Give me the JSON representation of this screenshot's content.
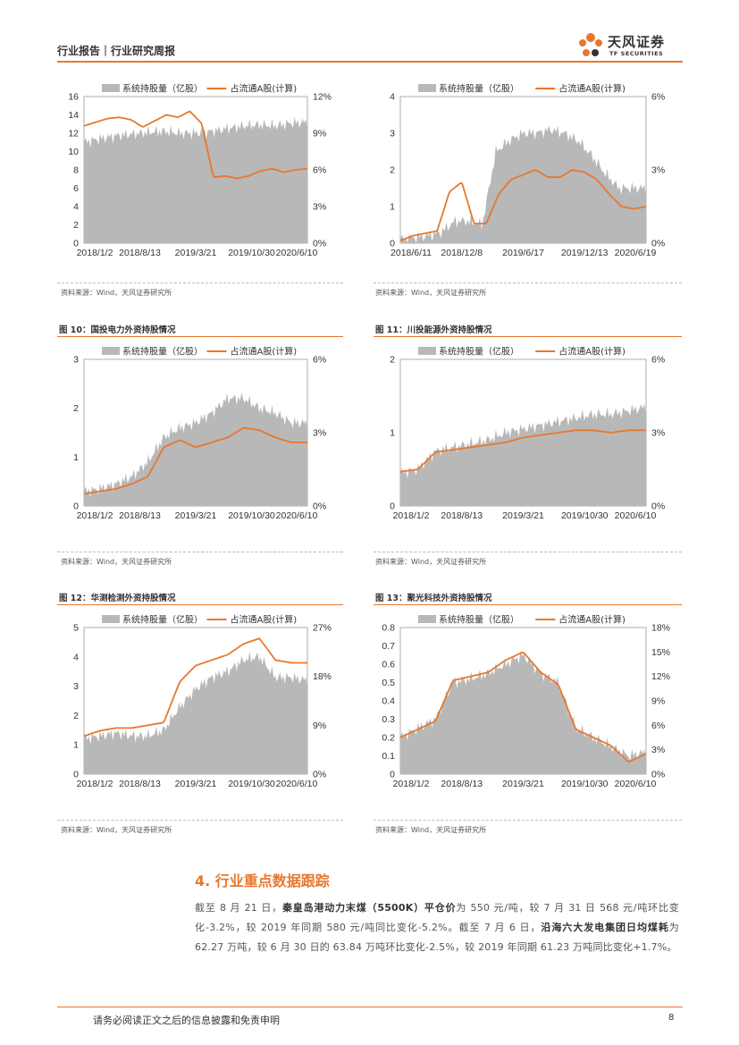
{
  "header": {
    "left_text": "行业报告｜行业研究周报",
    "logo_text": "天风证券",
    "logo_sub": "TF SECURITIES"
  },
  "colors": {
    "accent": "#e8772e",
    "area": "#b8b8b8"
  },
  "sources": {
    "text": "资料来源：Wind，天风证券研究所"
  },
  "figures": {
    "fig10_title": "图 10：国投电力外资持股情况",
    "fig11_title": "图 11：川投能源外资持股情况",
    "fig12_title": "图 12：华测检测外资持股情况",
    "fig13_title": "图 13：聚光科技外资持股情况"
  },
  "chart_data": [
    {
      "type": "area",
      "series": [
        {
          "name": "系统持股量（亿股）",
          "values": [
            11,
            11.4,
            11.7,
            11.9,
            12.1,
            12.2,
            12.0,
            12.0,
            12.2,
            12.5,
            12.8,
            12.9,
            12.8,
            13.1,
            13.2
          ]
        },
        {
          "name": "占流通A股(计算)",
          "values": [
            9.6,
            9.9,
            10.2,
            10.3,
            10.1,
            9.5,
            10.0,
            10.5,
            10.3,
            10.8,
            9.8,
            5.4,
            5.5,
            5.3,
            5.5,
            5.9,
            6.1,
            5.8,
            6.0,
            6.1
          ]
        }
      ],
      "x_ticks": [
        "2018/1/2",
        "2018/8/13",
        "2019/3/21",
        "2019/10/30",
        "2020/6/10"
      ],
      "y_ticks": [
        "0",
        "2",
        "4",
        "6",
        "8",
        "10",
        "12",
        "14",
        "16"
      ],
      "y2_ticks": [
        "0%",
        "3%",
        "6%",
        "9%",
        "12%"
      ]
    },
    {
      "type": "area",
      "series": [
        {
          "name": "系统持股量（亿股）",
          "values": [
            0.1,
            0.15,
            0.2,
            0.3,
            0.6,
            0.6,
            0.5,
            2.5,
            2.8,
            3.0,
            3.0,
            3.1,
            3.0,
            2.8,
            2.4,
            1.9,
            1.5,
            1.5,
            1.5
          ]
        },
        {
          "name": "占流通A股(计算)",
          "values": [
            0.1,
            0.3,
            0.4,
            0.5,
            2.1,
            2.5,
            0.8,
            0.8,
            2.0,
            2.6,
            2.8,
            3.0,
            2.7,
            2.7,
            3.0,
            2.9,
            2.6,
            2.0,
            1.5,
            1.4,
            1.5
          ]
        }
      ],
      "x_ticks": [
        "2018/6/11",
        "2018/12/8",
        "2019/6/17",
        "2019/12/13",
        "2020/6/19"
      ],
      "y_ticks": [
        "0",
        "1",
        "2",
        "3",
        "4"
      ],
      "y2_ticks": [
        "0%",
        "3%",
        "6%"
      ]
    },
    {
      "type": "area",
      "series": [
        {
          "name": "系统持股量（亿股）",
          "values": [
            0.3,
            0.35,
            0.45,
            0.6,
            0.9,
            1.4,
            1.6,
            1.7,
            1.9,
            2.2,
            2.2,
            2.0,
            1.9,
            1.7,
            1.7
          ]
        },
        {
          "name": "占流通A股(计算)",
          "values": [
            0.5,
            0.6,
            0.7,
            0.9,
            1.2,
            2.4,
            2.7,
            2.4,
            2.6,
            2.8,
            3.2,
            3.1,
            2.8,
            2.6,
            2.6
          ]
        }
      ],
      "x_ticks": [
        "2018/1/2",
        "2018/8/13",
        "2019/3/21",
        "2019/10/30",
        "2020/6/10"
      ],
      "y_ticks": [
        "0",
        "1",
        "2",
        "3"
      ],
      "y2_ticks": [
        "0%",
        "3%",
        "6%"
      ]
    },
    {
      "type": "area",
      "series": [
        {
          "name": "系统持股量（亿股）",
          "values": [
            0.45,
            0.5,
            0.75,
            0.8,
            0.85,
            0.9,
            1.0,
            1.05,
            1.1,
            1.15,
            1.2,
            1.25,
            1.25,
            1.3,
            1.35
          ]
        },
        {
          "name": "占流通A股(计算)",
          "values": [
            1.4,
            1.5,
            2.2,
            2.3,
            2.4,
            2.5,
            2.6,
            2.8,
            2.9,
            3.0,
            3.1,
            3.1,
            3.0,
            3.1,
            3.1
          ]
        }
      ],
      "x_ticks": [
        "2018/1/2",
        "2018/8/13",
        "2019/3/21",
        "2019/10/30",
        "2020/6/10"
      ],
      "y_ticks": [
        "0",
        "1",
        "2"
      ],
      "y2_ticks": [
        "0%",
        "3%",
        "6%"
      ]
    },
    {
      "type": "area",
      "series": [
        {
          "name": "系统持股量（亿股）",
          "values": [
            1.2,
            1.3,
            1.4,
            1.3,
            1.3,
            1.5,
            2.3,
            2.9,
            3.3,
            3.5,
            3.9,
            4.0,
            3.3,
            3.3,
            3.2
          ]
        },
        {
          "name": "占流通A股(计算)",
          "values": [
            7,
            8,
            8.5,
            8.5,
            9,
            9.5,
            17,
            20,
            21,
            22,
            24,
            25,
            21,
            20.5,
            20.5
          ]
        }
      ],
      "x_ticks": [
        "2018/1/2",
        "2018/8/13",
        "2019/3/21",
        "2019/10/30",
        "2020/6/10"
      ],
      "y_ticks": [
        "0",
        "1",
        "2",
        "3",
        "4",
        "5"
      ],
      "y2_ticks": [
        "0%",
        "9%",
        "18%",
        "27%"
      ]
    },
    {
      "type": "area",
      "series": [
        {
          "name": "系统持股量（亿股）",
          "values": [
            0.2,
            0.25,
            0.3,
            0.5,
            0.52,
            0.55,
            0.6,
            0.65,
            0.55,
            0.5,
            0.25,
            0.2,
            0.15,
            0.1,
            0.12
          ]
        },
        {
          "name": "占流通A股(计算)",
          "values": [
            4.5,
            5.5,
            6.5,
            11.5,
            12,
            12.5,
            14,
            15,
            12.5,
            11,
            5.5,
            4.5,
            3.5,
            1.5,
            2.5
          ]
        }
      ],
      "x_ticks": [
        "2018/1/2",
        "2018/8/13",
        "2019/3/21",
        "2019/10/30",
        "2020/6/10"
      ],
      "y_ticks": [
        "0",
        "0.1",
        "0.2",
        "0.3",
        "0.4",
        "0.5",
        "0.6",
        "0.7",
        "0.8"
      ],
      "y2_ticks": [
        "0%",
        "3%",
        "6%",
        "9%",
        "12%",
        "15%",
        "18%"
      ]
    }
  ],
  "section": {
    "title": "4. 行业重点数据跟踪",
    "p1_a": "截至 8 月 21 日，",
    "p1_b": "秦皇岛港动力末煤（5500K）平仓价",
    "p1_c": "为 550 元/吨，较 7 月 31 日 568 元/吨环比变化-3.2%，较 2019 年同期 580 元/吨同比变化-5.2%。截至 7 月 6 日，",
    "p1_d": "沿海六大发电集团日均煤耗",
    "p1_e": "为 62.27 万吨，较 6 月 30 日的 63.84 万吨环比变化-2.5%，较 2019 年同期 61.23 万吨同比变化+1.7%。"
  },
  "footer": {
    "disclaimer": "请务必阅读正文之后的信息披露和免责申明",
    "page": "8"
  }
}
